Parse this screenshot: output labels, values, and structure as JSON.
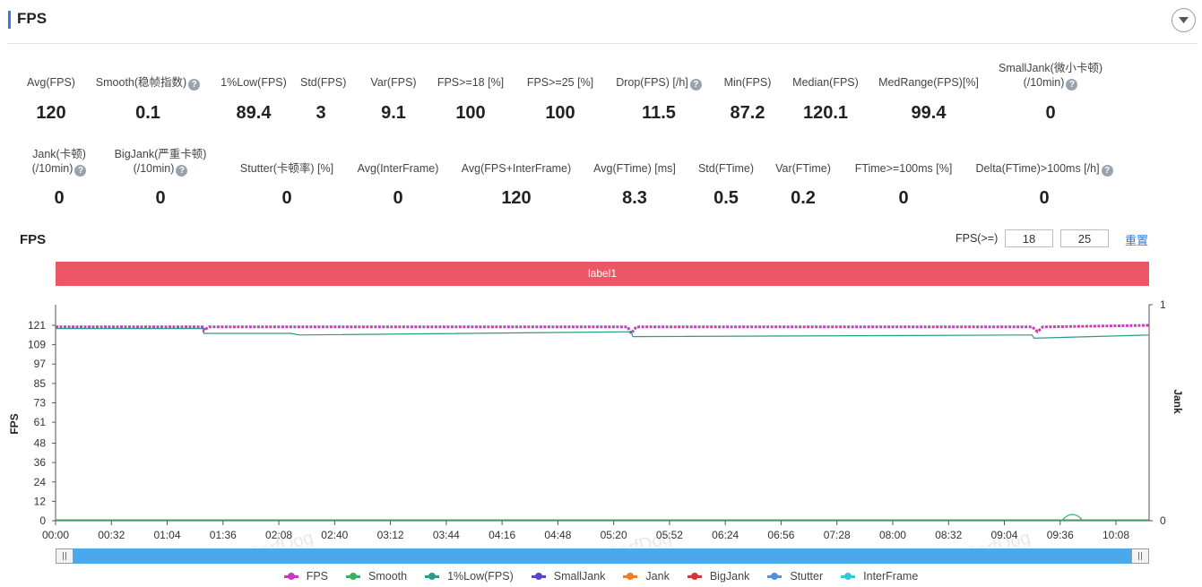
{
  "header": {
    "title": "FPS",
    "collapse_icon": "chevron-down-icon"
  },
  "stats_row1": [
    {
      "label": "Avg(FPS)",
      "value": "120",
      "help": false
    },
    {
      "label": "Smooth(稳帧指数)",
      "value": "0.1",
      "help": true
    },
    {
      "label": "1%Low(FPS)",
      "value": "89.4",
      "help": false
    },
    {
      "label": "Std(FPS)",
      "value": "3",
      "help": false
    },
    {
      "label": "Var(FPS)",
      "value": "9.1",
      "help": false
    },
    {
      "label": "FPS>=18 [%]",
      "value": "100",
      "help": false
    },
    {
      "label": "FPS>=25 [%]",
      "value": "100",
      "help": false
    },
    {
      "label": "Drop(FPS) [/h]",
      "value": "11.5",
      "help": true
    },
    {
      "label": "Min(FPS)",
      "value": "87.2",
      "help": false
    },
    {
      "label": "Median(FPS)",
      "value": "120.1",
      "help": false
    },
    {
      "label": "MedRange(FPS)[%]",
      "value": "99.4",
      "help": false
    },
    {
      "label": "SmallJank(微小卡顿)",
      "label2": "(/10min)",
      "value": "0",
      "help": true
    }
  ],
  "stats_row2": [
    {
      "label": "Jank(卡顿)",
      "label2": "(/10min)",
      "value": "0",
      "help": true
    },
    {
      "label": "BigJank(严重卡顿)",
      "label2": "(/10min)",
      "value": "0",
      "help": true
    },
    {
      "label": "Stutter(卡顿率) [%]",
      "value": "0",
      "help": false
    },
    {
      "label": "Avg(InterFrame)",
      "value": "0",
      "help": false
    },
    {
      "label": "Avg(FPS+InterFrame)",
      "value": "120",
      "help": false
    },
    {
      "label": "Avg(FTime) [ms]",
      "value": "8.3",
      "help": false
    },
    {
      "label": "Std(FTime)",
      "value": "0.5",
      "help": false
    },
    {
      "label": "Var(FTime)",
      "value": "0.2",
      "help": false
    },
    {
      "label": "FTime>=100ms [%]",
      "value": "0",
      "help": false
    },
    {
      "label": "Delta(FTime)>100ms [/h]",
      "value": "0",
      "help": true
    }
  ],
  "chart_section": {
    "title": "FPS",
    "fps_threshold_label": "FPS(>=)",
    "threshold1": "18",
    "threshold2": "25",
    "reset_label": "重置",
    "label_bar": "label1",
    "watermark": "PerfDog"
  },
  "chart_data": {
    "type": "line",
    "ylabel": "FPS",
    "y2label": "Jank",
    "y_ticks": [
      "0",
      "12",
      "24",
      "36",
      "48",
      "61",
      "73",
      "85",
      "97",
      "109",
      "121"
    ],
    "y2_ticks": [
      "0",
      "1"
    ],
    "x_ticks": [
      "00:00",
      "00:32",
      "01:04",
      "01:36",
      "02:08",
      "02:40",
      "03:12",
      "03:44",
      "04:16",
      "04:48",
      "05:20",
      "05:52",
      "06:24",
      "06:56",
      "07:28",
      "08:00",
      "08:32",
      "09:04",
      "09:36",
      "10:08"
    ],
    "ylim": [
      0,
      121
    ],
    "y2lim": [
      0,
      1
    ],
    "xlim_seconds": [
      0,
      627
    ],
    "series": [
      {
        "name": "FPS",
        "color": "#c23fb8",
        "points": [
          [
            0,
            120
          ],
          [
            85,
            120
          ],
          [
            85,
            118
          ],
          [
            88,
            120
          ],
          [
            328,
            120
          ],
          [
            330,
            116
          ],
          [
            333,
            120
          ],
          [
            560,
            120
          ],
          [
            563,
            117
          ],
          [
            566,
            120
          ],
          [
            627,
            121
          ]
        ]
      },
      {
        "name": "Smooth",
        "color": "#3fae63",
        "points": [
          [
            0,
            0.5
          ],
          [
            627,
            0.5
          ]
        ]
      },
      {
        "name": "1%Low(FPS)",
        "color": "#2a9a8a",
        "points": [
          [
            0,
            119
          ],
          [
            85,
            119
          ],
          [
            85,
            116
          ],
          [
            135,
            116
          ],
          [
            140,
            115
          ],
          [
            330,
            117
          ],
          [
            331,
            114
          ],
          [
            560,
            115
          ],
          [
            561,
            113
          ],
          [
            627,
            115
          ]
        ]
      },
      {
        "name": "SmallJank",
        "color": "#5b45c0",
        "points": []
      },
      {
        "name": "Jank",
        "color": "#e87d2a",
        "points": []
      },
      {
        "name": "BigJank",
        "color": "#d0363a",
        "points": []
      },
      {
        "name": "Stutter",
        "color": "#4f92d6",
        "points": []
      },
      {
        "name": "InterFrame",
        "color": "#39c5d6",
        "points": []
      }
    ]
  }
}
